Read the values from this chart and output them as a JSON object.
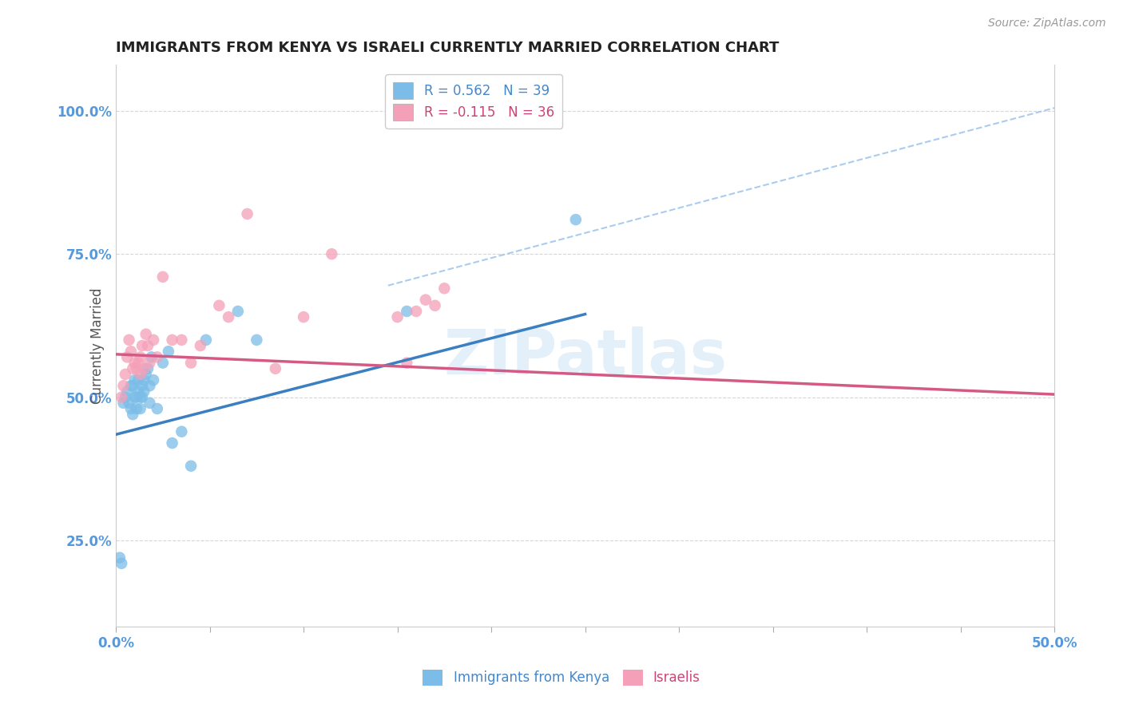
{
  "title": "IMMIGRANTS FROM KENYA VS ISRAELI CURRENTLY MARRIED CORRELATION CHART",
  "source_text": "Source: ZipAtlas.com",
  "ylabel": "Currently Married",
  "xlim": [
    0.0,
    0.5
  ],
  "ylim": [
    0.1,
    1.08
  ],
  "yticks": [
    0.25,
    0.5,
    0.75,
    1.0
  ],
  "yticklabels": [
    "25.0%",
    "50.0%",
    "75.0%",
    "100.0%"
  ],
  "legend_r1": "R = 0.562   N = 39",
  "legend_r2": "R = -0.115   N = 36",
  "color_blue": "#7bbde8",
  "color_pink": "#f4a0b8",
  "color_blue_line": "#3a7fc1",
  "color_pink_line": "#d45a85",
  "color_dashed": "#aaccee",
  "watermark": "ZIPatlas",
  "blue_points_x": [
    0.002,
    0.003,
    0.004,
    0.005,
    0.006,
    0.007,
    0.008,
    0.008,
    0.009,
    0.009,
    0.01,
    0.01,
    0.011,
    0.011,
    0.012,
    0.012,
    0.013,
    0.013,
    0.014,
    0.014,
    0.015,
    0.015,
    0.016,
    0.017,
    0.018,
    0.018,
    0.019,
    0.02,
    0.022,
    0.025,
    0.028,
    0.03,
    0.035,
    0.04,
    0.048,
    0.065,
    0.075,
    0.155,
    0.245
  ],
  "blue_points_y": [
    0.22,
    0.21,
    0.49,
    0.5,
    0.51,
    0.49,
    0.48,
    0.52,
    0.47,
    0.52,
    0.5,
    0.53,
    0.5,
    0.48,
    0.51,
    0.53,
    0.5,
    0.48,
    0.52,
    0.5,
    0.51,
    0.53,
    0.54,
    0.55,
    0.52,
    0.49,
    0.57,
    0.53,
    0.48,
    0.56,
    0.58,
    0.42,
    0.44,
    0.38,
    0.6,
    0.65,
    0.6,
    0.65,
    0.81
  ],
  "pink_points_x": [
    0.003,
    0.004,
    0.005,
    0.006,
    0.007,
    0.008,
    0.009,
    0.01,
    0.011,
    0.012,
    0.013,
    0.013,
    0.014,
    0.015,
    0.016,
    0.017,
    0.018,
    0.02,
    0.022,
    0.025,
    0.03,
    0.035,
    0.04,
    0.045,
    0.055,
    0.06,
    0.07,
    0.085,
    0.1,
    0.115,
    0.15,
    0.155,
    0.16,
    0.165,
    0.17,
    0.175
  ],
  "pink_points_y": [
    0.5,
    0.52,
    0.54,
    0.57,
    0.6,
    0.58,
    0.55,
    0.56,
    0.55,
    0.56,
    0.57,
    0.54,
    0.59,
    0.55,
    0.61,
    0.59,
    0.56,
    0.6,
    0.57,
    0.71,
    0.6,
    0.6,
    0.56,
    0.59,
    0.66,
    0.64,
    0.82,
    0.55,
    0.64,
    0.75,
    0.64,
    0.56,
    0.65,
    0.67,
    0.66,
    0.69
  ],
  "blue_line_x": [
    0.0,
    0.25
  ],
  "blue_line_y": [
    0.435,
    0.645
  ],
  "pink_line_x": [
    0.0,
    0.5
  ],
  "pink_line_y": [
    0.575,
    0.505
  ],
  "dashed_line_x": [
    0.145,
    0.5
  ],
  "dashed_line_y": [
    0.695,
    1.005
  ]
}
